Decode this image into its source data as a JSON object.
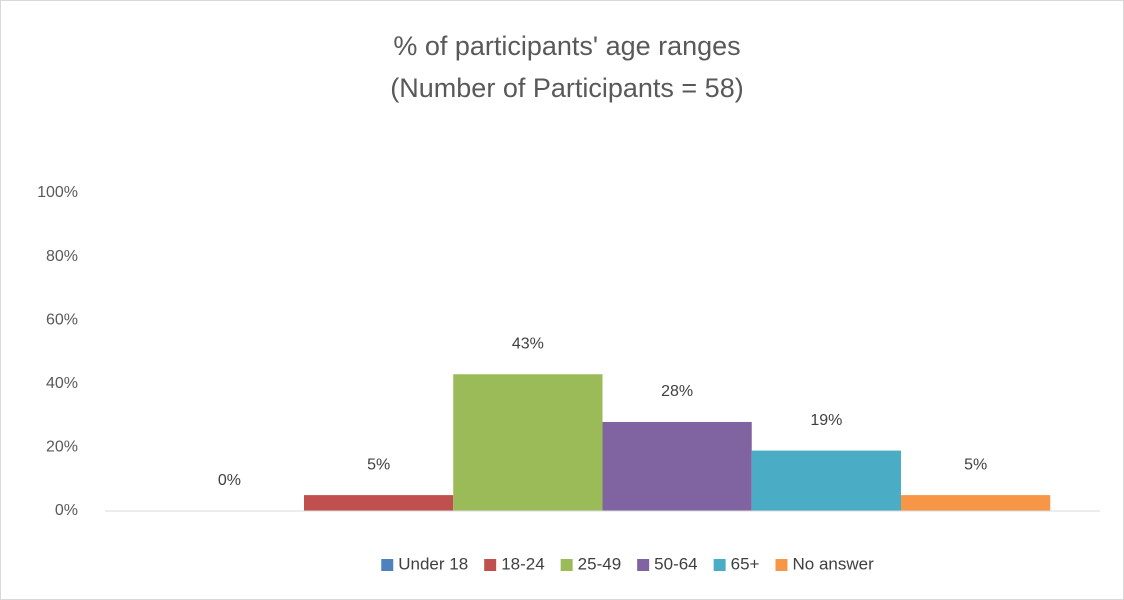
{
  "chart_data": {
    "type": "bar",
    "title": "% of participants' age ranges",
    "subtitle": "(Number of Participants = 58)",
    "categories": [
      null
    ],
    "series": [
      {
        "name": "Under 18",
        "color": "#4f81bd",
        "values": [
          0
        ],
        "value_labels": [
          "0%"
        ]
      },
      {
        "name": "18-24",
        "color": "#c0504d",
        "values": [
          5
        ],
        "value_labels": [
          "5%"
        ]
      },
      {
        "name": "25-49",
        "color": "#9bbb59",
        "values": [
          43
        ],
        "value_labels": [
          "43%"
        ]
      },
      {
        "name": "50-64",
        "color": "#8064a2",
        "values": [
          28
        ],
        "value_labels": [
          "28%"
        ]
      },
      {
        "name": "65+",
        "color": "#4bacc6",
        "values": [
          19
        ],
        "value_labels": [
          "19%"
        ]
      },
      {
        "name": "No answer",
        "color": "#f79646",
        "values": [
          5
        ],
        "value_labels": [
          "5%"
        ]
      }
    ],
    "ylim": [
      0,
      100
    ],
    "yticks": [
      {
        "value": 0,
        "label": "0%"
      },
      {
        "value": 20,
        "label": "20%"
      },
      {
        "value": 40,
        "label": "40%"
      },
      {
        "value": 60,
        "label": "60%"
      },
      {
        "value": 80,
        "label": "80%"
      },
      {
        "value": 100,
        "label": "100%"
      }
    ],
    "grid": false,
    "legend": "bottom"
  }
}
